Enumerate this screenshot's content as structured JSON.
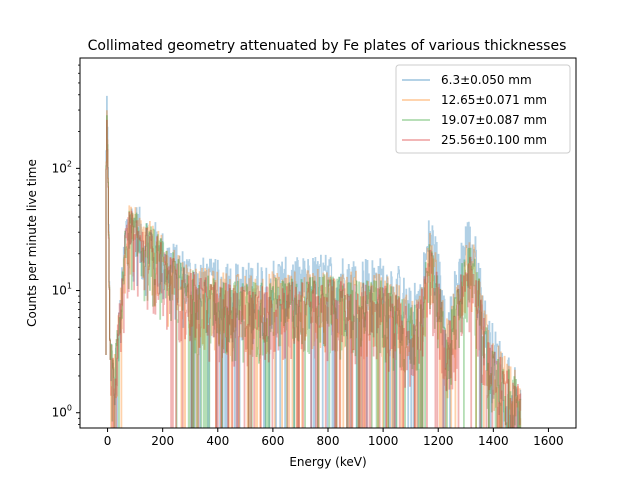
{
  "chart_data": {
    "type": "line",
    "title": "Collimated geometry attenuated by Fe plates of various thicknesses",
    "xlabel": "Energy (keV)",
    "ylabel": "Counts per minute live time",
    "xlim": [
      -100,
      1700
    ],
    "ylim": [
      0.75,
      800
    ],
    "yscale": "log",
    "x_ticks": [
      "0",
      "200",
      "400",
      "600",
      "800",
      "1000",
      "1200",
      "1400",
      "1600"
    ],
    "y_ticks": [
      "10^0",
      "10^1",
      "10^2"
    ],
    "grid": false,
    "legend_position": "top-right",
    "series": [
      {
        "name": "6.3±0.050 mm",
        "color": "#1f77b4",
        "points": [
          [
            -8,
            3
          ],
          [
            -5,
            560
          ],
          [
            0,
            150
          ],
          [
            8,
            3
          ],
          [
            20,
            1.5
          ],
          [
            40,
            4
          ],
          [
            55,
            12
          ],
          [
            65,
            28
          ],
          [
            80,
            33
          ],
          [
            100,
            31
          ],
          [
            130,
            26
          ],
          [
            170,
            22
          ],
          [
            200,
            18
          ],
          [
            250,
            14
          ],
          [
            300,
            12
          ],
          [
            350,
            11
          ],
          [
            400,
            10.5
          ],
          [
            500,
            10
          ],
          [
            600,
            11
          ],
          [
            700,
            11
          ],
          [
            800,
            12
          ],
          [
            900,
            11.5
          ],
          [
            1000,
            11
          ],
          [
            1050,
            10
          ],
          [
            1100,
            6
          ],
          [
            1130,
            8
          ],
          [
            1150,
            14
          ],
          [
            1170,
            28
          ],
          [
            1190,
            17
          ],
          [
            1210,
            9
          ],
          [
            1230,
            4
          ],
          [
            1250,
            7
          ],
          [
            1275,
            13
          ],
          [
            1300,
            24
          ],
          [
            1325,
            22
          ],
          [
            1345,
            12
          ],
          [
            1370,
            5
          ],
          [
            1400,
            3
          ],
          [
            1440,
            2
          ],
          [
            1480,
            1.5
          ],
          [
            1500,
            1
          ]
        ]
      },
      {
        "name": "12.65±0.071 mm",
        "color": "#ff7f0e",
        "points": [
          [
            -8,
            3
          ],
          [
            -5,
            420
          ],
          [
            0,
            120
          ],
          [
            8,
            3
          ],
          [
            20,
            1.5
          ],
          [
            40,
            4
          ],
          [
            55,
            11
          ],
          [
            65,
            25
          ],
          [
            80,
            30
          ],
          [
            100,
            28
          ],
          [
            130,
            24
          ],
          [
            170,
            20
          ],
          [
            200,
            16
          ],
          [
            250,
            12
          ],
          [
            300,
            10
          ],
          [
            350,
            9
          ],
          [
            400,
            8.5
          ],
          [
            500,
            8
          ],
          [
            600,
            8.5
          ],
          [
            700,
            8.5
          ],
          [
            800,
            9
          ],
          [
            900,
            8.5
          ],
          [
            1000,
            8
          ],
          [
            1050,
            7
          ],
          [
            1100,
            5
          ],
          [
            1130,
            6
          ],
          [
            1150,
            10
          ],
          [
            1170,
            18
          ],
          [
            1190,
            12
          ],
          [
            1210,
            7
          ],
          [
            1230,
            3.5
          ],
          [
            1250,
            5
          ],
          [
            1275,
            9
          ],
          [
            1300,
            16
          ],
          [
            1325,
            15
          ],
          [
            1345,
            9
          ],
          [
            1370,
            4
          ],
          [
            1400,
            2.5
          ],
          [
            1440,
            1.8
          ],
          [
            1480,
            1.3
          ],
          [
            1500,
            1
          ]
        ]
      },
      {
        "name": "19.07±0.087 mm",
        "color": "#2ca02c",
        "points": [
          [
            -8,
            3
          ],
          [
            -5,
            380
          ],
          [
            0,
            110
          ],
          [
            8,
            3
          ],
          [
            20,
            1.5
          ],
          [
            40,
            4
          ],
          [
            55,
            10
          ],
          [
            65,
            23
          ],
          [
            80,
            28
          ],
          [
            100,
            26
          ],
          [
            130,
            22
          ],
          [
            170,
            19
          ],
          [
            200,
            15
          ],
          [
            250,
            11
          ],
          [
            300,
            9
          ],
          [
            350,
            8
          ],
          [
            400,
            7.5
          ],
          [
            500,
            7
          ],
          [
            600,
            7.5
          ],
          [
            700,
            7.5
          ],
          [
            800,
            8
          ],
          [
            900,
            7.5
          ],
          [
            1000,
            7
          ],
          [
            1050,
            6
          ],
          [
            1100,
            4.5
          ],
          [
            1130,
            5.5
          ],
          [
            1150,
            9
          ],
          [
            1170,
            16
          ],
          [
            1190,
            11
          ],
          [
            1210,
            6
          ],
          [
            1230,
            3
          ],
          [
            1250,
            4.5
          ],
          [
            1275,
            8
          ],
          [
            1300,
            14
          ],
          [
            1325,
            13
          ],
          [
            1345,
            8
          ],
          [
            1370,
            3.5
          ],
          [
            1400,
            2.2
          ],
          [
            1440,
            1.6
          ],
          [
            1480,
            1.2
          ],
          [
            1500,
            1
          ]
        ]
      },
      {
        "name": "25.56±0.100 mm",
        "color": "#d62728",
        "points": [
          [
            -8,
            3
          ],
          [
            -5,
            350
          ],
          [
            0,
            100
          ],
          [
            8,
            3
          ],
          [
            20,
            1.5
          ],
          [
            40,
            4
          ],
          [
            55,
            9
          ],
          [
            65,
            22
          ],
          [
            80,
            27
          ],
          [
            100,
            25
          ],
          [
            130,
            21
          ],
          [
            170,
            18
          ],
          [
            200,
            14
          ],
          [
            250,
            10
          ],
          [
            300,
            8.5
          ],
          [
            350,
            7.5
          ],
          [
            400,
            7
          ],
          [
            500,
            6.5
          ],
          [
            600,
            7
          ],
          [
            700,
            7
          ],
          [
            800,
            7.5
          ],
          [
            900,
            7
          ],
          [
            1000,
            6.5
          ],
          [
            1050,
            5.5
          ],
          [
            1100,
            4
          ],
          [
            1130,
            5
          ],
          [
            1150,
            8
          ],
          [
            1170,
            14
          ],
          [
            1190,
            10
          ],
          [
            1210,
            5.5
          ],
          [
            1230,
            2.8
          ],
          [
            1250,
            4
          ],
          [
            1275,
            7
          ],
          [
            1300,
            12
          ],
          [
            1325,
            11
          ],
          [
            1345,
            7
          ],
          [
            1370,
            3.2
          ],
          [
            1400,
            2
          ],
          [
            1440,
            1.5
          ],
          [
            1480,
            1.1
          ],
          [
            1500,
            1
          ]
        ]
      }
    ]
  }
}
